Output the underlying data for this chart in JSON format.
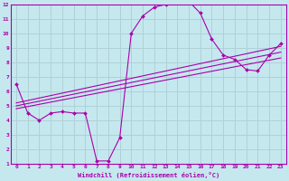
{
  "xlabel": "Windchill (Refroidissement éolien,°C)",
  "xlim": [
    -0.5,
    23.5
  ],
  "ylim": [
    1,
    12
  ],
  "xticks": [
    0,
    1,
    2,
    3,
    4,
    5,
    6,
    7,
    8,
    9,
    10,
    11,
    12,
    13,
    14,
    15,
    16,
    17,
    18,
    19,
    20,
    21,
    22,
    23
  ],
  "yticks": [
    1,
    2,
    3,
    4,
    5,
    6,
    7,
    8,
    9,
    10,
    11,
    12
  ],
  "bg_color": "#c5e8ef",
  "line_color": "#aa00aa",
  "grid_color": "#b0d0d8",
  "main_curve": {
    "x": [
      0,
      1,
      2,
      3,
      4,
      5,
      6,
      7,
      8,
      9,
      10,
      11,
      12,
      13,
      14,
      15,
      16,
      17,
      18,
      19,
      20,
      21,
      22,
      23
    ],
    "y": [
      6.5,
      4.5,
      4.0,
      4.5,
      4.6,
      4.5,
      4.5,
      1.2,
      1.2,
      2.8,
      10.0,
      11.2,
      11.8,
      12.0,
      12.2,
      12.2,
      11.4,
      9.6,
      8.5,
      8.2,
      7.5,
      7.4,
      8.5,
      9.3
    ]
  },
  "linear_lines": [
    {
      "x": [
        0,
        23
      ],
      "y": [
        4.8,
        8.3
      ]
    },
    {
      "x": [
        0,
        23
      ],
      "y": [
        5.0,
        8.7
      ]
    },
    {
      "x": [
        0,
        23
      ],
      "y": [
        5.2,
        9.1
      ]
    }
  ],
  "font_size": 4.5,
  "xlabel_size": 5.0
}
